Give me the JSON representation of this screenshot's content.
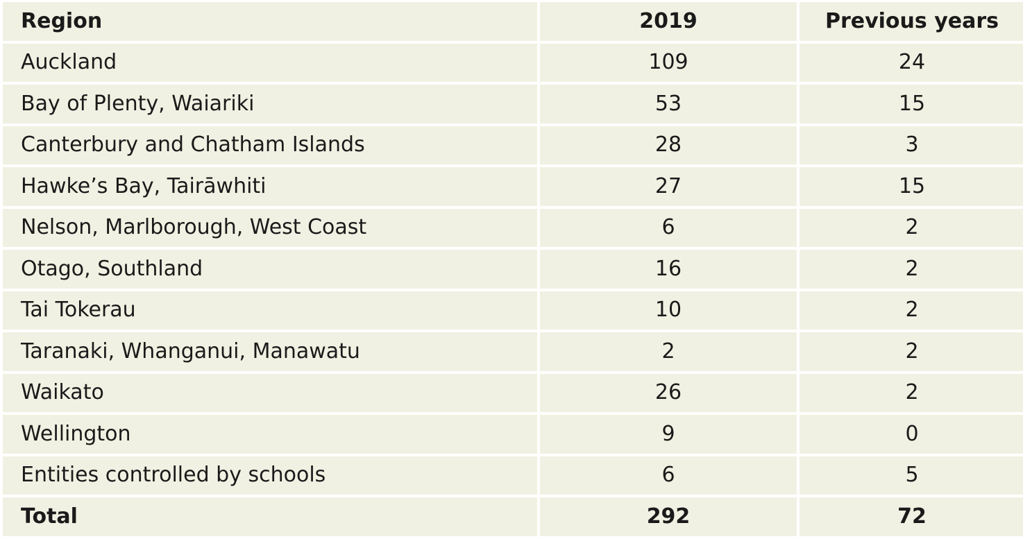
{
  "table": {
    "headers": {
      "region": "Region",
      "year_2019": "2019",
      "previous": "Previous years"
    },
    "rows": [
      {
        "region": "Auckland",
        "y2019": "109",
        "previous": "24"
      },
      {
        "region": "Bay of Plenty, Waiariki",
        "y2019": "53",
        "previous": "15"
      },
      {
        "region": "Canterbury and Chatham Islands",
        "y2019": "28",
        "previous": "3"
      },
      {
        "region": "Hawke’s Bay, Tairāwhiti",
        "y2019": "27",
        "previous": "15"
      },
      {
        "region": "Nelson, Marlborough, West Coast",
        "y2019": "6",
        "previous": "2"
      },
      {
        "region": "Otago, Southland",
        "y2019": "16",
        "previous": "2"
      },
      {
        "region": "Tai Tokerau",
        "y2019": "10",
        "previous": "2"
      },
      {
        "region": "Taranaki, Whanganui, Manawatu",
        "y2019": "2",
        "previous": "2"
      },
      {
        "region": "Waikato",
        "y2019": "26",
        "previous": "2"
      },
      {
        "region": "Wellington",
        "y2019": "9",
        "previous": "0"
      },
      {
        "region": "Entities controlled by schools",
        "y2019": "6",
        "previous": "5"
      }
    ],
    "total": {
      "region": "Total",
      "y2019": "292",
      "previous": "72"
    }
  },
  "colors": {
    "cell_background": "#f1f1e3",
    "text": "#1a1a1a"
  }
}
